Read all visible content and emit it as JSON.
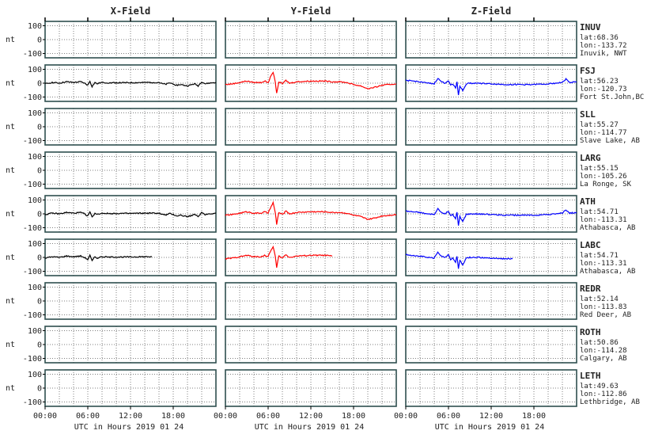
{
  "chart_data": {
    "type": "line",
    "columns": [
      "X-Field",
      "Y-Field",
      "Z-Field"
    ],
    "ylabel": "nt",
    "yticks": [
      100,
      0,
      -100
    ],
    "ylim": [
      -120,
      120
    ],
    "xlim": [
      0,
      24
    ],
    "xticks": [
      "00:00",
      "06:00",
      "12:00",
      "18:00"
    ],
    "xlabel": "UTC in Hours  2019 01 24",
    "grid": true,
    "series_colors": {
      "X-Field": "#000000",
      "Y-Field": "#ff0000",
      "Z-Field": "#0000ff"
    },
    "stations": [
      {
        "code": "INUV",
        "lat": "lat:68.36",
        "lon": "lon:-133.72",
        "place": "Inuvik, NWT",
        "has_data": false
      },
      {
        "code": "FSJ",
        "lat": "lat:56.23",
        "lon": "lon:-120.73",
        "place": "Fort St.John,BC",
        "has_data": true,
        "end_hour": 24
      },
      {
        "code": "SLL",
        "lat": "lat:55.27",
        "lon": "lon:-114.77",
        "place": "Slave Lake, AB",
        "has_data": false
      },
      {
        "code": "LARG",
        "lat": "lat:55.15",
        "lon": "lon:-105.26",
        "place": "La Ronge, SK",
        "has_data": false
      },
      {
        "code": "ATH",
        "lat": "lat:54.71",
        "lon": "lon:-113.31",
        "place": "Athabasca, AB",
        "has_data": true,
        "end_hour": 24
      },
      {
        "code": "LABC",
        "lat": "lat:54.71",
        "lon": "lon:-113.31",
        "place": "Athabasca, AB",
        "has_data": true,
        "end_hour": 15
      },
      {
        "code": "REDR",
        "lat": "lat:52.14",
        "lon": "lon:-113.83",
        "place": "Red Deer, AB",
        "has_data": false
      },
      {
        "code": "ROTH",
        "lat": "lat:50.86",
        "lon": "lon:-114.28",
        "place": "Calgary, AB",
        "has_data": false
      },
      {
        "code": "LETH",
        "lat": "lat:49.63",
        "lon": "lon:-112.86",
        "place": "Lethbridge, AB",
        "has_data": false
      }
    ],
    "traces": {
      "X-Field": {
        "x": [
          0,
          1,
          2,
          3,
          4,
          5,
          5.5,
          6,
          6.3,
          6.6,
          7,
          7.3,
          7.6,
          8,
          9,
          10,
          12,
          14,
          16,
          16.5,
          17,
          17.5,
          18,
          18.5,
          19,
          20,
          21,
          21.5,
          22,
          22.5,
          23,
          24
        ],
        "y": [
          -5,
          5,
          0,
          10,
          5,
          10,
          0,
          -15,
          15,
          -25,
          5,
          -5,
          0,
          5,
          2,
          3,
          3,
          5,
          5,
          -5,
          -8,
          2,
          -5,
          -15,
          -10,
          -20,
          -5,
          -20,
          10,
          -5,
          0,
          5
        ]
      },
      "Y-Field": {
        "x": [
          0,
          1,
          2,
          3,
          4,
          5,
          5.5,
          6,
          6.3,
          6.7,
          7,
          7.2,
          7.5,
          8,
          8.5,
          9,
          10,
          12,
          14,
          15,
          16,
          17,
          18,
          19,
          20,
          21,
          22,
          23,
          24
        ],
        "y": [
          -10,
          -5,
          5,
          15,
          5,
          5,
          15,
          5,
          40,
          80,
          10,
          -75,
          10,
          -5,
          20,
          0,
          10,
          15,
          15,
          10,
          10,
          5,
          -10,
          -20,
          -40,
          -30,
          -15,
          -10,
          -5
        ]
      },
      "Z-Field": {
        "x": [
          0,
          1,
          2,
          3,
          4,
          4.5,
          5,
          5.5,
          6,
          6.3,
          6.6,
          7,
          7.2,
          7.4,
          7.6,
          8,
          8.5,
          9,
          10,
          12,
          14,
          16,
          18,
          20,
          21,
          22,
          22.5,
          23,
          24
        ],
        "y": [
          20,
          15,
          10,
          0,
          -5,
          35,
          10,
          0,
          20,
          -15,
          -5,
          -35,
          10,
          -85,
          -20,
          -55,
          -5,
          0,
          0,
          -5,
          -10,
          -10,
          -10,
          -5,
          0,
          5,
          30,
          5,
          10
        ]
      }
    }
  }
}
